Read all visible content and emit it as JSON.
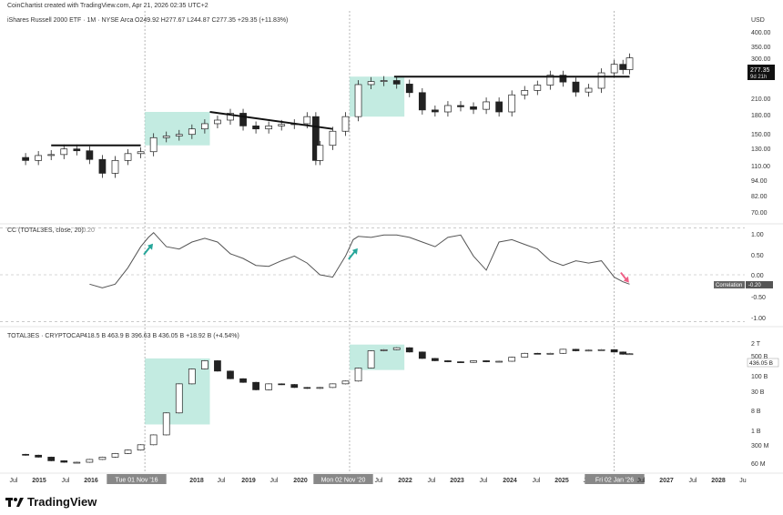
{
  "meta": {
    "creator_line": "CoinChartist created with TradingView.com, Apr 21, 2026 02:35 UTC+2",
    "brand": "TradingView",
    "colors": {
      "bull_candle": "#ffffff",
      "bear_candle": "#222222",
      "zone": "#b9e8dc",
      "arrow_up": "#26a69a",
      "arrow_down": "#ef5f86",
      "line": "#555555"
    }
  },
  "x_axis": {
    "labels": [
      "Jul",
      "2015",
      "Jul",
      "2016",
      "Tue 01 Nov '16",
      "2018",
      "Jul",
      "2019",
      "Jul",
      "2020",
      "Mon 02 Nov '20",
      "Jul",
      "2022",
      "Jul",
      "2023",
      "Jul",
      "2024",
      "Jul",
      "2025",
      "Jul",
      "Fri 02 Jan '26",
      "Jul",
      "2027",
      "Jul",
      "2028",
      "Ju"
    ]
  },
  "panels": {
    "top": {
      "title": "iShares Russell 2000 ETF · 1M · NYSE Arca",
      "ohlc": "O249.92 H277.67 L244.87 C277.35 +29.35 (+11.83%)",
      "currency": "USD",
      "axis_ticks": [
        "400.00",
        "350.00",
        "300.00",
        "270.00",
        "240.00",
        "210.00",
        "180.00",
        "150.00",
        "130.00",
        "110.00",
        "94.00",
        "82.00",
        "70.00"
      ],
      "last_price": "277.35",
      "countdown": "9d 21h"
    },
    "middle": {
      "title": "CC (TOTAL3ES, close, 20)",
      "value": "-0.20",
      "axis_ticks": [
        "1.00",
        "0.50",
        "0.00",
        "-0.50",
        "-1.00"
      ],
      "tag_label": "Correlation",
      "tag_value": "-0.20"
    },
    "bottom": {
      "title": "TOTAL3ES · CRYPTOCAP",
      "ohlc": "418.5 B  463.9 B  396.63 B  436.05 B  +18.92 B (+4.54%)",
      "axis_ticks": [
        "2 T",
        "500 B",
        "100 B",
        "30 B",
        "8 B",
        "1 B",
        "300 M",
        "60 M"
      ],
      "last_value": "436.05 B"
    }
  },
  "chart_data": [
    {
      "type": "line",
      "title": "iShares Russell 2000 ETF · 1M · NYSE Arca",
      "ylabel": "USD",
      "log_scale": true,
      "ylim": [
        65,
        420
      ],
      "x": [
        2014.25,
        2014.5,
        2014.75,
        2015.0,
        2015.25,
        2015.5,
        2015.75,
        2016.0,
        2016.25,
        2016.5,
        2016.75,
        2017.0,
        2017.25,
        2017.5,
        2017.75,
        2018.0,
        2018.25,
        2018.5,
        2018.75,
        2019.0,
        2019.25,
        2019.5,
        2019.75,
        2020.0,
        2020.17,
        2020.25,
        2020.5,
        2020.75,
        2021.0,
        2021.25,
        2021.5,
        2021.75,
        2022.0,
        2022.25,
        2022.5,
        2022.75,
        2023.0,
        2023.25,
        2023.5,
        2023.75,
        2024.0,
        2024.25,
        2024.5,
        2024.75,
        2025.0,
        2025.25,
        2025.5,
        2025.75,
        2026.0,
        2026.17,
        2026.3
      ],
      "values": [
        115,
        112,
        117,
        118,
        124,
        122,
        113,
        100,
        112,
        119,
        121,
        137,
        139,
        141,
        148,
        155,
        160,
        170,
        152,
        148,
        152,
        154,
        155,
        165,
        112,
        128,
        145,
        165,
        219,
        225,
        227,
        220,
        204,
        175,
        172,
        182,
        180,
        176,
        188,
        172,
        200,
        208,
        218,
        238,
        224,
        205,
        212,
        243,
        262,
        250,
        277.35
      ],
      "annotations": [
        {
          "type": "resistance",
          "x": [
            2015.0,
            2016.75
          ],
          "y": 128
        },
        {
          "type": "resistance",
          "x": [
            2018.1,
            2020.5
          ],
          "y": [
            172,
            148
          ]
        },
        {
          "type": "resistance",
          "x": [
            2021.7,
            2026.3
          ],
          "y": 235
        },
        {
          "type": "zone",
          "x": [
            2016.83,
            2018.1
          ],
          "y": [
            128,
            172
          ]
        },
        {
          "type": "zone",
          "x": [
            2020.83,
            2021.9
          ],
          "y": [
            165,
            235
          ]
        }
      ]
    },
    {
      "type": "line",
      "title": "CC (TOTAL3ES, close, 20)",
      "ylim": [
        -1.05,
        1.05
      ],
      "series": [
        {
          "x": [
            2015.75,
            2016.0,
            2016.25,
            2016.5,
            2016.75,
            2016.9,
            2017.0,
            2017.25,
            2017.5,
            2017.75,
            2018.0,
            2018.25,
            2018.5,
            2018.75,
            2019.0,
            2019.25,
            2019.5,
            2019.75,
            2020.0,
            2020.25,
            2020.5,
            2020.75,
            2020.9,
            2021.0,
            2021.25,
            2021.5,
            2021.75,
            2022.0,
            2022.25,
            2022.5,
            2022.75,
            2023.0,
            2023.25,
            2023.5,
            2023.75,
            2024.0,
            2024.25,
            2024.5,
            2024.75,
            2025.0,
            2025.25,
            2025.5,
            2025.75,
            2026.0,
            2026.17,
            2026.3
          ],
          "values": [
            -0.2,
            -0.28,
            -0.2,
            0.15,
            0.6,
            0.8,
            0.9,
            0.6,
            0.55,
            0.7,
            0.78,
            0.7,
            0.45,
            0.35,
            0.2,
            0.18,
            0.3,
            0.4,
            0.25,
            0.0,
            -0.05,
            0.4,
            0.75,
            0.82,
            0.8,
            0.85,
            0.85,
            0.8,
            0.7,
            0.6,
            0.8,
            0.85,
            0.4,
            0.1,
            0.7,
            0.75,
            0.65,
            0.55,
            0.3,
            0.2,
            0.3,
            0.25,
            0.3,
            -0.05,
            -0.15,
            -0.2
          ]
        }
      ],
      "annotations": [
        {
          "type": "arrow_up",
          "x": 2016.9,
          "y": 0.55
        },
        {
          "type": "arrow_up",
          "x": 2020.9,
          "y": 0.45
        },
        {
          "type": "arrow_down",
          "x": 2026.2,
          "y": -0.05
        }
      ]
    },
    {
      "type": "line",
      "title": "TOTAL3ES · CRYPTOCAP",
      "log_scale": true,
      "ylim": [
        45000000.0,
        3000000000000.0
      ],
      "x": [
        2014.25,
        2014.5,
        2014.75,
        2015.0,
        2015.25,
        2015.5,
        2015.75,
        2016.0,
        2016.25,
        2016.5,
        2016.75,
        2017.0,
        2017.25,
        2017.5,
        2017.75,
        2018.0,
        2018.25,
        2018.5,
        2018.75,
        2019.0,
        2019.25,
        2019.5,
        2019.75,
        2020.0,
        2020.25,
        2020.5,
        2020.75,
        2021.0,
        2021.25,
        2021.5,
        2021.75,
        2022.0,
        2022.25,
        2022.5,
        2022.75,
        2023.0,
        2023.25,
        2023.5,
        2023.75,
        2024.0,
        2024.25,
        2024.5,
        2024.75,
        2025.0,
        2025.25,
        2025.5,
        2025.75,
        2026.0,
        2026.17,
        2026.3
      ],
      "values": [
        150000000.0,
        140000000.0,
        120000000.0,
        90000000.0,
        80000000.0,
        80000000.0,
        100000000.0,
        120000000.0,
        160000000.0,
        210000000.0,
        320000000.0,
        700000000.0,
        4000000000.0,
        40000000000.0,
        130000000000.0,
        250000000000.0,
        110000000000.0,
        60000000000.0,
        45000000000.0,
        25000000000.0,
        40000000000.0,
        38000000000.0,
        30000000000.0,
        28000000000.0,
        30000000000.0,
        40000000000.0,
        50000000000.0,
        140000000000.0,
        550000000000.0,
        600000000000.0,
        700000000000.0,
        500000000000.0,
        300000000000.0,
        250000000000.0,
        230000000000.0,
        220000000000.0,
        250000000000.0,
        230000000000.0,
        240000000000.0,
        330000000000.0,
        450000000000.0,
        440000000000.0,
        450000000000.0,
        620000000000.0,
        550000000000.0,
        580000000000.0,
        600000000000.0,
        500000000000.0,
        420000000000.0,
        436000000000.0
      ],
      "annotations": [
        {
          "type": "zone",
          "x": [
            2016.83,
            2018.1
          ],
          "y": [
            1600000000.0,
            300000000000.0
          ]
        },
        {
          "type": "zone",
          "x": [
            2020.83,
            2021.9
          ],
          "y": [
            120000000000.0,
            900000000000.0
          ]
        }
      ]
    }
  ]
}
